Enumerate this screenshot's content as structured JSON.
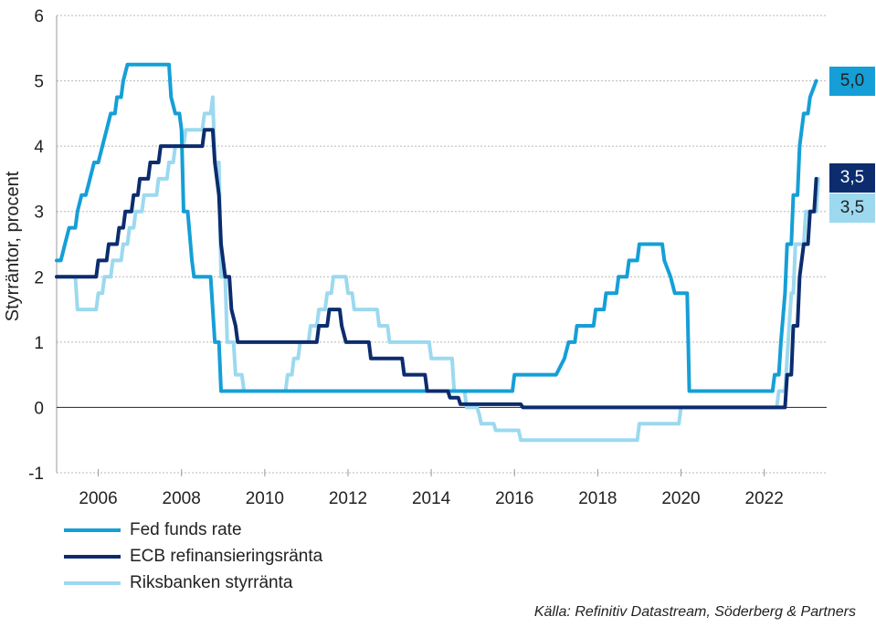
{
  "chart_data": {
    "type": "line",
    "ylabel": "Styrräntor, procent",
    "ylim": [
      -1,
      6
    ],
    "yticks": [
      "-1",
      "0",
      "1",
      "2",
      "3",
      "4",
      "5",
      "6"
    ],
    "xlim": [
      2005.0,
      2023.5
    ],
    "xticks": [
      "2006",
      "2008",
      "2010",
      "2012",
      "2014",
      "2016",
      "2018",
      "2020",
      "2022"
    ],
    "grid": "horizontal dotted",
    "legend_position": "bottom-left",
    "series": [
      {
        "name": "Fed funds rate",
        "color": "#159fd6",
        "end_label": "5,0",
        "points": [
          [
            2005.0,
            2.25
          ],
          [
            2005.1,
            2.25
          ],
          [
            2005.2,
            2.5
          ],
          [
            2005.3,
            2.75
          ],
          [
            2005.45,
            2.75
          ],
          [
            2005.5,
            3.0
          ],
          [
            2005.6,
            3.25
          ],
          [
            2005.7,
            3.25
          ],
          [
            2005.8,
            3.5
          ],
          [
            2005.9,
            3.75
          ],
          [
            2006.0,
            3.75
          ],
          [
            2006.1,
            4.0
          ],
          [
            2006.2,
            4.25
          ],
          [
            2006.3,
            4.5
          ],
          [
            2006.4,
            4.5
          ],
          [
            2006.45,
            4.75
          ],
          [
            2006.55,
            4.75
          ],
          [
            2006.6,
            5.0
          ],
          [
            2006.7,
            5.25
          ],
          [
            2007.7,
            5.25
          ],
          [
            2007.75,
            4.75
          ],
          [
            2007.85,
            4.5
          ],
          [
            2007.95,
            4.5
          ],
          [
            2008.0,
            4.25
          ],
          [
            2008.05,
            3.0
          ],
          [
            2008.15,
            3.0
          ],
          [
            2008.25,
            2.25
          ],
          [
            2008.3,
            2.0
          ],
          [
            2008.7,
            2.0
          ],
          [
            2008.8,
            1.0
          ],
          [
            2008.9,
            1.0
          ],
          [
            2008.95,
            0.25
          ],
          [
            2015.95,
            0.25
          ],
          [
            2016.0,
            0.5
          ],
          [
            2017.0,
            0.5
          ],
          [
            2017.2,
            0.75
          ],
          [
            2017.3,
            1.0
          ],
          [
            2017.45,
            1.0
          ],
          [
            2017.5,
            1.25
          ],
          [
            2017.9,
            1.25
          ],
          [
            2017.95,
            1.5
          ],
          [
            2018.15,
            1.5
          ],
          [
            2018.2,
            1.75
          ],
          [
            2018.45,
            1.75
          ],
          [
            2018.5,
            2.0
          ],
          [
            2018.7,
            2.0
          ],
          [
            2018.75,
            2.25
          ],
          [
            2018.95,
            2.25
          ],
          [
            2019.0,
            2.5
          ],
          [
            2019.55,
            2.5
          ],
          [
            2019.6,
            2.25
          ],
          [
            2019.75,
            2.0
          ],
          [
            2019.85,
            1.75
          ],
          [
            2020.15,
            1.75
          ],
          [
            2020.2,
            0.25
          ],
          [
            2022.2,
            0.25
          ],
          [
            2022.25,
            0.5
          ],
          [
            2022.35,
            0.5
          ],
          [
            2022.4,
            1.0
          ],
          [
            2022.5,
            1.75
          ],
          [
            2022.55,
            2.5
          ],
          [
            2022.65,
            2.5
          ],
          [
            2022.7,
            3.25
          ],
          [
            2022.8,
            3.25
          ],
          [
            2022.85,
            4.0
          ],
          [
            2022.95,
            4.5
          ],
          [
            2023.05,
            4.5
          ],
          [
            2023.1,
            4.75
          ],
          [
            2023.25,
            5.0
          ]
        ]
      },
      {
        "name": "ECB refinansieringsränta",
        "color": "#0c2c6e",
        "end_label": "3,5",
        "points": [
          [
            2005.0,
            2.0
          ],
          [
            2005.95,
            2.0
          ],
          [
            2006.0,
            2.25
          ],
          [
            2006.2,
            2.25
          ],
          [
            2006.25,
            2.5
          ],
          [
            2006.45,
            2.5
          ],
          [
            2006.5,
            2.75
          ],
          [
            2006.6,
            2.75
          ],
          [
            2006.65,
            3.0
          ],
          [
            2006.8,
            3.0
          ],
          [
            2006.85,
            3.25
          ],
          [
            2006.95,
            3.25
          ],
          [
            2007.0,
            3.5
          ],
          [
            2007.2,
            3.5
          ],
          [
            2007.25,
            3.75
          ],
          [
            2007.45,
            3.75
          ],
          [
            2007.5,
            4.0
          ],
          [
            2008.5,
            4.0
          ],
          [
            2008.55,
            4.25
          ],
          [
            2008.75,
            4.25
          ],
          [
            2008.8,
            3.75
          ],
          [
            2008.9,
            3.25
          ],
          [
            2008.95,
            2.5
          ],
          [
            2009.05,
            2.0
          ],
          [
            2009.15,
            2.0
          ],
          [
            2009.2,
            1.5
          ],
          [
            2009.3,
            1.25
          ],
          [
            2009.35,
            1.0
          ],
          [
            2011.25,
            1.0
          ],
          [
            2011.3,
            1.25
          ],
          [
            2011.5,
            1.25
          ],
          [
            2011.55,
            1.5
          ],
          [
            2011.8,
            1.5
          ],
          [
            2011.85,
            1.25
          ],
          [
            2011.95,
            1.0
          ],
          [
            2012.5,
            1.0
          ],
          [
            2012.55,
            0.75
          ],
          [
            2013.3,
            0.75
          ],
          [
            2013.35,
            0.5
          ],
          [
            2013.85,
            0.5
          ],
          [
            2013.9,
            0.25
          ],
          [
            2014.4,
            0.25
          ],
          [
            2014.45,
            0.15
          ],
          [
            2014.65,
            0.15
          ],
          [
            2014.7,
            0.05
          ],
          [
            2016.15,
            0.05
          ],
          [
            2016.2,
            0.0
          ],
          [
            2022.5,
            0.0
          ],
          [
            2022.55,
            0.5
          ],
          [
            2022.65,
            0.5
          ],
          [
            2022.7,
            1.25
          ],
          [
            2022.8,
            1.25
          ],
          [
            2022.85,
            2.0
          ],
          [
            2022.95,
            2.5
          ],
          [
            2023.05,
            2.5
          ],
          [
            2023.1,
            3.0
          ],
          [
            2023.2,
            3.0
          ],
          [
            2023.25,
            3.5
          ]
        ]
      },
      {
        "name": "Riksbanken styrränta",
        "color": "#9cd9ef",
        "end_label": "3,5",
        "points": [
          [
            2005.0,
            2.0
          ],
          [
            2005.45,
            2.0
          ],
          [
            2005.5,
            1.5
          ],
          [
            2005.95,
            1.5
          ],
          [
            2006.0,
            1.75
          ],
          [
            2006.1,
            1.75
          ],
          [
            2006.15,
            2.0
          ],
          [
            2006.3,
            2.0
          ],
          [
            2006.35,
            2.25
          ],
          [
            2006.55,
            2.25
          ],
          [
            2006.6,
            2.5
          ],
          [
            2006.7,
            2.5
          ],
          [
            2006.75,
            2.75
          ],
          [
            2006.85,
            2.75
          ],
          [
            2006.9,
            3.0
          ],
          [
            2007.05,
            3.0
          ],
          [
            2007.1,
            3.25
          ],
          [
            2007.4,
            3.25
          ],
          [
            2007.45,
            3.5
          ],
          [
            2007.65,
            3.5
          ],
          [
            2007.7,
            3.75
          ],
          [
            2007.8,
            3.75
          ],
          [
            2007.85,
            4.0
          ],
          [
            2008.05,
            4.0
          ],
          [
            2008.1,
            4.25
          ],
          [
            2008.5,
            4.25
          ],
          [
            2008.55,
            4.5
          ],
          [
            2008.7,
            4.5
          ],
          [
            2008.75,
            4.75
          ],
          [
            2008.8,
            3.75
          ],
          [
            2008.9,
            3.75
          ],
          [
            2008.95,
            2.0
          ],
          [
            2009.05,
            2.0
          ],
          [
            2009.1,
            1.0
          ],
          [
            2009.25,
            1.0
          ],
          [
            2009.3,
            0.5
          ],
          [
            2009.45,
            0.5
          ],
          [
            2009.5,
            0.25
          ],
          [
            2010.5,
            0.25
          ],
          [
            2010.55,
            0.5
          ],
          [
            2010.65,
            0.5
          ],
          [
            2010.7,
            0.75
          ],
          [
            2010.8,
            0.75
          ],
          [
            2010.85,
            1.0
          ],
          [
            2011.05,
            1.0
          ],
          [
            2011.1,
            1.25
          ],
          [
            2011.25,
            1.25
          ],
          [
            2011.3,
            1.5
          ],
          [
            2011.45,
            1.5
          ],
          [
            2011.5,
            1.75
          ],
          [
            2011.6,
            1.75
          ],
          [
            2011.65,
            2.0
          ],
          [
            2011.95,
            2.0
          ],
          [
            2012.0,
            1.75
          ],
          [
            2012.1,
            1.75
          ],
          [
            2012.15,
            1.5
          ],
          [
            2012.7,
            1.5
          ],
          [
            2012.75,
            1.25
          ],
          [
            2012.95,
            1.25
          ],
          [
            2013.0,
            1.0
          ],
          [
            2013.95,
            1.0
          ],
          [
            2014.0,
            0.75
          ],
          [
            2014.5,
            0.75
          ],
          [
            2014.55,
            0.25
          ],
          [
            2014.8,
            0.25
          ],
          [
            2014.85,
            0.0
          ],
          [
            2015.1,
            0.0
          ],
          [
            2015.15,
            -0.1
          ],
          [
            2015.2,
            -0.25
          ],
          [
            2015.5,
            -0.25
          ],
          [
            2015.55,
            -0.35
          ],
          [
            2016.1,
            -0.35
          ],
          [
            2016.15,
            -0.5
          ],
          [
            2018.95,
            -0.5
          ],
          [
            2019.0,
            -0.25
          ],
          [
            2019.95,
            -0.25
          ],
          [
            2020.0,
            0.0
          ],
          [
            2022.3,
            0.0
          ],
          [
            2022.35,
            0.25
          ],
          [
            2022.5,
            0.25
          ],
          [
            2022.55,
            0.75
          ],
          [
            2022.65,
            1.75
          ],
          [
            2022.7,
            1.75
          ],
          [
            2022.75,
            2.5
          ],
          [
            2022.95,
            2.5
          ],
          [
            2023.0,
            3.0
          ],
          [
            2023.25,
            3.0
          ],
          [
            2023.3,
            3.5
          ]
        ]
      }
    ]
  },
  "source": "Källa: Refinitiv Datastream, Söderberg & Partners"
}
